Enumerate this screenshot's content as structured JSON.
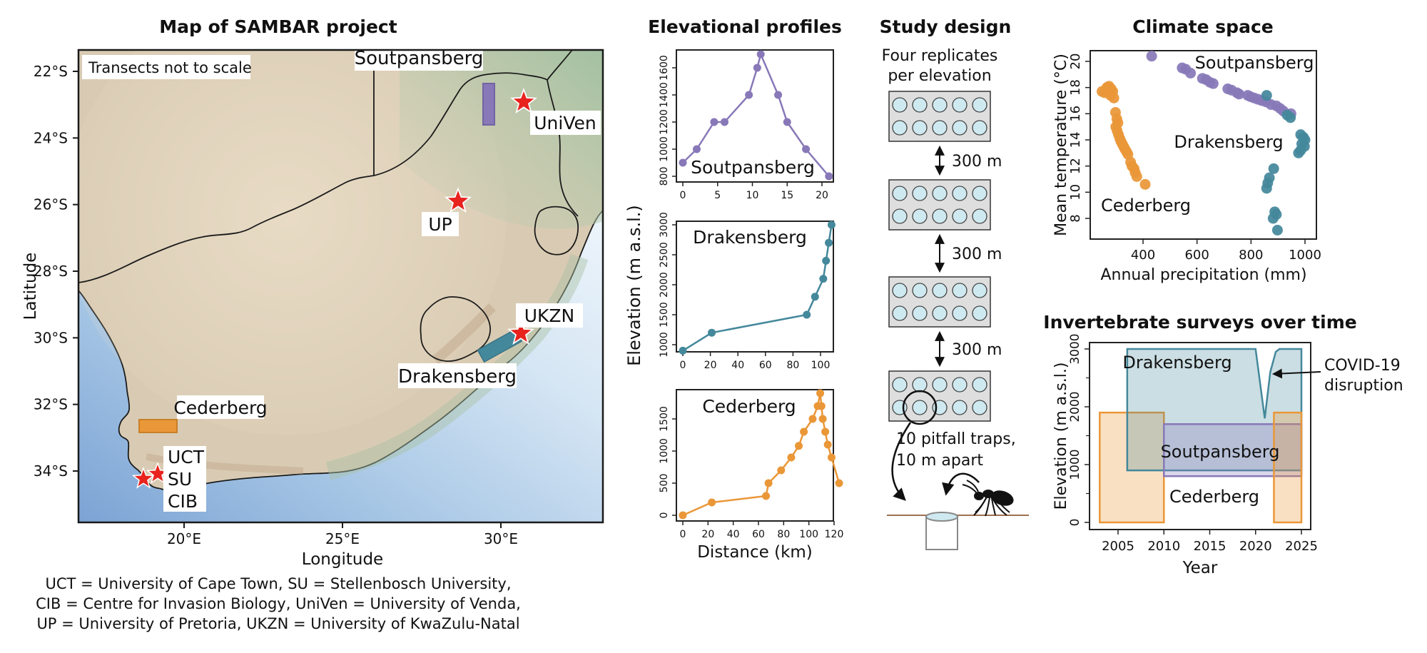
{
  "colors": {
    "soutpansberg": "#8878B8",
    "drakensberg": "#44889B",
    "cederberg": "#EA9738",
    "star_red": "#E8231E"
  },
  "map": {
    "title": "Map of SAMBAR project",
    "note": "Transects not to scale",
    "xlabel": "Longitude",
    "ylabel": "Latitude",
    "lat_ticks": [
      "22°S",
      "24°S",
      "26°S",
      "28°S",
      "30°S",
      "32°S",
      "34°S"
    ],
    "lon_ticks": [
      "20°E",
      "25°E",
      "30°E"
    ],
    "transect_labels": {
      "soutpansberg": "Soutpansberg",
      "drakensberg": "Drakensberg",
      "cederberg": "Cederberg"
    },
    "markers": {
      "univen": "UniVen",
      "up": "UP",
      "ukzn": "UKZN",
      "uct": "UCT",
      "su": "SU",
      "cib": "CIB"
    },
    "caption_lines": [
      "UCT = University of Cape Town, SU = Stellenbosch University,",
      "CIB = Centre for Invasion Biology, UniVen = University of Venda,",
      "UP = University of Pretoria, UKZN = University of KwaZulu-Natal"
    ]
  },
  "profiles": {
    "title": "Elevational profiles",
    "ylabel": "Elevation (m a.s.l.)",
    "xlabel": "Distance (km)"
  },
  "study_design": {
    "title": "Study design",
    "subtitle1": "Four replicates",
    "subtitle2": "per elevation",
    "gap_label": "300 m",
    "replicate_count": 4,
    "gap_count": 3,
    "trap_rows": 2,
    "trap_cols": 5,
    "trap_note1": "10 pitfall traps,",
    "trap_note2": "10 m apart"
  },
  "climate": {
    "title": "Climate space",
    "xlabel": "Annual precipitation (mm)",
    "ylabel": "Mean temperature (°C)"
  },
  "surveys": {
    "title": "Invertebrate surveys over time",
    "xlabel": "Year",
    "ylabel": "Elevation (m a.s.l.)",
    "annotation1": "COVID-19",
    "annotation2": "disruption"
  },
  "chart_data": [
    {
      "id": "profile_soutpansberg",
      "type": "line",
      "name": "Soutpansberg",
      "color": "#8878B8",
      "xlabel": "Distance (km)",
      "ylabel": "Elevation (m a.s.l.)",
      "x": [
        0,
        2,
        4.5,
        6,
        9.5,
        10.7,
        11.2,
        13.7,
        15,
        17.7,
        21
      ],
      "y": [
        900,
        1000,
        1200,
        1200,
        1400,
        1600,
        1700,
        1400,
        1200,
        1000,
        800
      ],
      "xticks": [
        0,
        5,
        10,
        15,
        20
      ],
      "yticks": [
        800,
        1000,
        1200,
        1400,
        1600
      ]
    },
    {
      "id": "profile_drakensberg",
      "type": "line",
      "name": "Drakensberg",
      "color": "#44889B",
      "xlabel": "Distance (km)",
      "ylabel": "Elevation (m a.s.l.)",
      "x": [
        0,
        21,
        90,
        96,
        102,
        104,
        106,
        108
      ],
      "y": [
        900,
        1200,
        1500,
        1800,
        2100,
        2400,
        2700,
        3000
      ],
      "xticks": [
        0,
        20,
        40,
        60,
        80,
        100
      ],
      "yticks": [
        1000,
        1500,
        2000,
        2500,
        3000
      ]
    },
    {
      "id": "profile_cederberg",
      "type": "line",
      "name": "Cederberg",
      "color": "#EA9738",
      "xlabel": "Distance (km)",
      "ylabel": "Elevation (m a.s.l.)",
      "x": [
        0,
        23,
        66,
        68,
        78,
        86,
        92,
        96,
        103,
        107,
        109,
        110,
        111,
        113,
        115,
        118,
        124
      ],
      "y": [
        0,
        200,
        300,
        500,
        700,
        900,
        1080,
        1300,
        1500,
        1700,
        1900,
        1700,
        1500,
        1300,
        1100,
        900,
        500
      ],
      "xticks": [
        0,
        20,
        40,
        60,
        80,
        100,
        120
      ],
      "yticks": [
        0,
        500,
        1000,
        1500
      ]
    },
    {
      "id": "climate_space",
      "type": "scatter",
      "title": "Climate space",
      "xlabel": "Annual precipitation (mm)",
      "ylabel": "Mean temperature (°C)",
      "xticks": [
        400,
        600,
        800,
        1000
      ],
      "yticks": [
        8,
        10,
        12,
        14,
        16,
        18,
        20
      ],
      "series": [
        {
          "name": "Soutpansberg",
          "color": "#8878B8",
          "points": [
            [
              432,
              20.4
            ],
            [
              545,
              19.5
            ],
            [
              558,
              19.4
            ],
            [
              576,
              19.1
            ],
            [
              620,
              18.7
            ],
            [
              634,
              18.6
            ],
            [
              648,
              18.4
            ],
            [
              660,
              18.3
            ],
            [
              714,
              17.9
            ],
            [
              728,
              17.8
            ],
            [
              748,
              17.6
            ],
            [
              756,
              17.5
            ],
            [
              788,
              17.4
            ],
            [
              798,
              17.3
            ],
            [
              812,
              17.2
            ],
            [
              826,
              17.1
            ],
            [
              840,
              17.0
            ],
            [
              856,
              16.9
            ],
            [
              874,
              16.7
            ],
            [
              894,
              16.6
            ],
            [
              908,
              16.4
            ],
            [
              920,
              16.2
            ],
            [
              948,
              16.0
            ]
          ]
        },
        {
          "name": "Drakensberg",
          "color": "#44889B",
          "points": [
            [
              858,
              17.4
            ],
            [
              934,
              15.9
            ],
            [
              946,
              15.7
            ],
            [
              984,
              14.4
            ],
            [
              994,
              14.2
            ],
            [
              1000,
              14.0
            ],
            [
              988,
              13.7
            ],
            [
              998,
              13.5
            ],
            [
              984,
              13.2
            ],
            [
              976,
              13.0
            ],
            [
              884,
              11.8
            ],
            [
              868,
              11.1
            ],
            [
              862,
              10.7
            ],
            [
              858,
              10.3
            ],
            [
              888,
              8.5
            ],
            [
              894,
              8.3
            ],
            [
              882,
              8.0
            ],
            [
              898,
              7.1
            ]
          ]
        },
        {
          "name": "Cederberg",
          "color": "#EA9738",
          "points": [
            [
              248,
              17.7
            ],
            [
              258,
              17.6
            ],
            [
              266,
              18.0
            ],
            [
              274,
              18.1
            ],
            [
              282,
              17.9
            ],
            [
              288,
              17.7
            ],
            [
              280,
              17.4
            ],
            [
              292,
              17.2
            ],
            [
              298,
              16.1
            ],
            [
              303,
              15.6
            ],
            [
              307,
              15.3
            ],
            [
              299,
              15.0
            ],
            [
              304,
              14.7
            ],
            [
              309,
              14.4
            ],
            [
              314,
              14.1
            ],
            [
              318,
              13.9
            ],
            [
              323,
              13.7
            ],
            [
              328,
              13.5
            ],
            [
              333,
              13.3
            ],
            [
              339,
              13.1
            ],
            [
              344,
              12.9
            ],
            [
              354,
              12.3
            ],
            [
              359,
              12.0
            ],
            [
              367,
              11.8
            ],
            [
              371,
              11.5
            ],
            [
              377,
              11.2
            ],
            [
              408,
              10.6
            ]
          ]
        }
      ]
    },
    {
      "id": "surveys_timeline",
      "type": "area",
      "title": "Invertebrate surveys over time",
      "xlabel": "Year",
      "ylabel": "Elevation (m a.s.l.)",
      "xticks": [
        2005,
        2010,
        2015,
        2020,
        2025
      ],
      "yticks": [
        0,
        1000,
        2000,
        3000
      ],
      "yticks_minor": [
        500,
        1500,
        2500
      ],
      "shapes": [
        {
          "name": "Cederberg",
          "kind": "rect",
          "color": "#EA9738",
          "x": [
            2003,
            2010
          ],
          "y": [
            0,
            1900
          ]
        },
        {
          "name": "Drakensberg",
          "kind": "polygon",
          "color": "#44889B",
          "points": [
            [
              2006,
              900
            ],
            [
              2006,
              3000
            ],
            [
              2020,
              3000
            ],
            [
              2021,
              1800
            ],
            [
              2021.6,
              2600
            ],
            [
              2022.2,
              2950
            ],
            [
              2022.6,
              3000
            ],
            [
              2025,
              3000
            ],
            [
              2025,
              900
            ]
          ]
        },
        {
          "name": "Soutpansberg",
          "kind": "rect",
          "color": "#8878B8",
          "x": [
            2010,
            2025
          ],
          "y": [
            800,
            1700
          ]
        },
        {
          "name": "Cederberg",
          "kind": "rect",
          "color": "#EA9738",
          "x": [
            2022,
            2025
          ],
          "y": [
            0,
            1900
          ]
        }
      ]
    }
  ]
}
